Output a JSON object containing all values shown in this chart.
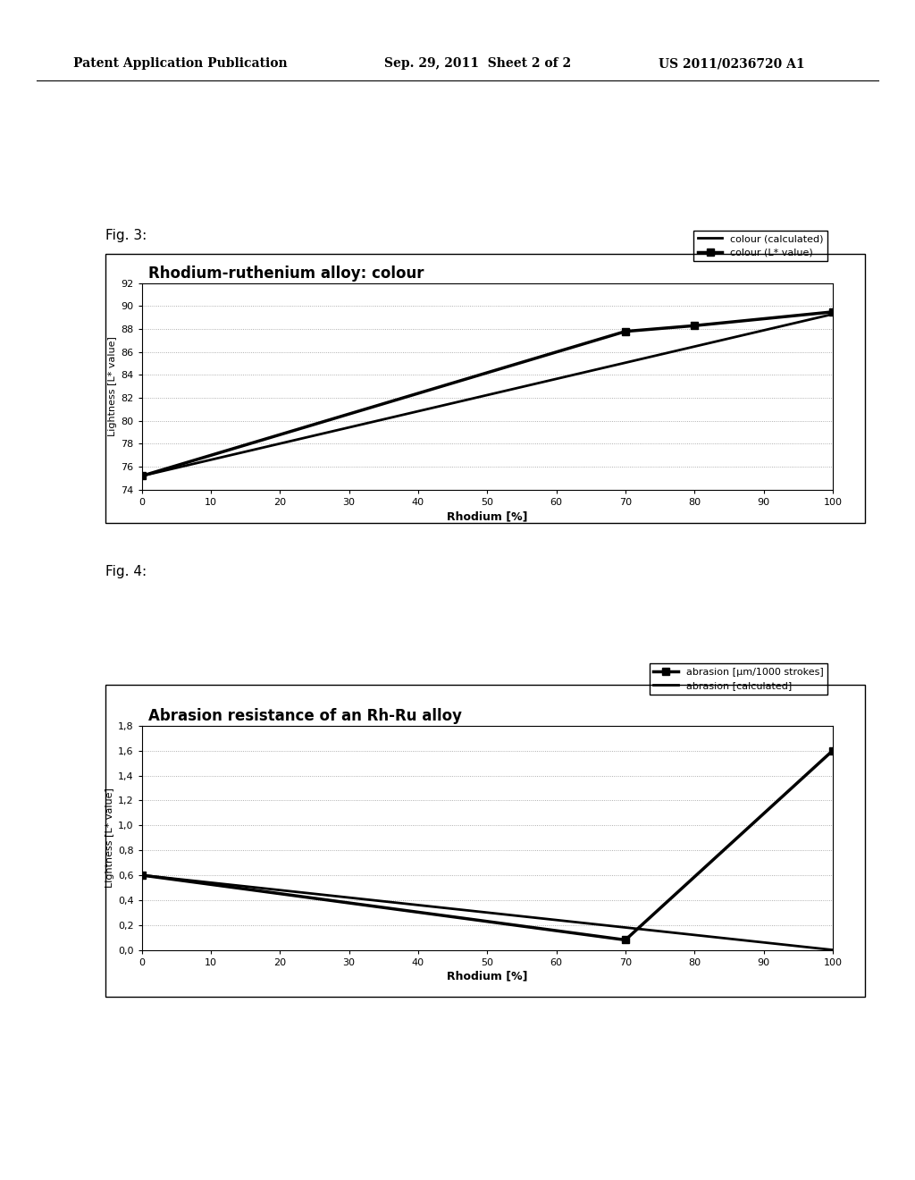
{
  "fig3": {
    "title": "Rhodium-ruthenium alloy: colour",
    "xlabel": "Rhodium [%]",
    "ylabel": "Lightness [L* value]",
    "xlim": [
      0,
      100
    ],
    "ylim": [
      74,
      92
    ],
    "yticks": [
      74,
      76,
      78,
      80,
      82,
      84,
      86,
      88,
      90,
      92
    ],
    "xticks": [
      0,
      10,
      20,
      30,
      40,
      50,
      60,
      70,
      80,
      90,
      100
    ],
    "line_calculated": {
      "x": [
        0,
        100
      ],
      "y": [
        75.2,
        89.3
      ],
      "label": "colour (calculated)",
      "color": "#000000",
      "linewidth": 2.0,
      "marker": null
    },
    "line_measured": {
      "x": [
        0,
        70,
        80,
        100
      ],
      "y": [
        75.2,
        87.8,
        88.3,
        89.5
      ],
      "label": "colour (L* value)",
      "color": "#000000",
      "linewidth": 2.5,
      "marker": "s",
      "markersize": 6
    }
  },
  "fig4": {
    "title": "Abrasion resistance of an Rh-Ru alloy",
    "xlabel": "Rhodium [%]",
    "ylabel": "Lightness [L* value]",
    "xlim": [
      0,
      100
    ],
    "ylim": [
      0,
      1.8
    ],
    "yticks": [
      0,
      0.2,
      0.4,
      0.6,
      0.8,
      1.0,
      1.2,
      1.4,
      1.6,
      1.8
    ],
    "xticks": [
      0,
      10,
      20,
      30,
      40,
      50,
      60,
      70,
      80,
      90,
      100
    ],
    "line_measured": {
      "x": [
        0,
        70,
        100
      ],
      "y": [
        0.6,
        0.08,
        1.6
      ],
      "label": "abrasion [µm/1000 strokes]",
      "color": "#000000",
      "linewidth": 2.5,
      "marker": "s",
      "markersize": 6
    },
    "line_calculated": {
      "x": [
        0,
        100
      ],
      "y": [
        0.6,
        0.0
      ],
      "label": "abrasion [calculated]",
      "color": "#000000",
      "linewidth": 2.0,
      "marker": null
    }
  },
  "header_left": "Patent Application Publication",
  "header_mid": "Sep. 29, 2011  Sheet 2 of 2",
  "header_right": "US 2011/0236720 A1",
  "fig3_label": "Fig. 3:",
  "fig4_label": "Fig. 4:",
  "background_color": "#ffffff",
  "plot_bg_color": "#ffffff",
  "grid_color": "#999999",
  "grid_style": ":",
  "grid_linewidth": 0.6
}
